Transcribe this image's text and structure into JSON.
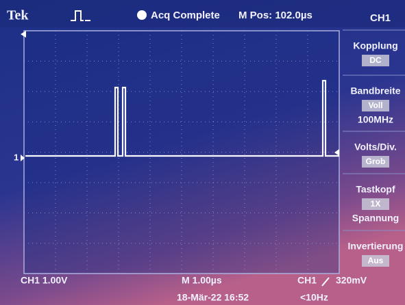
{
  "header": {
    "brand": "Tek",
    "status": "Acq Complete",
    "position": "M Pos: 102.0µs",
    "channel": "CH1"
  },
  "menu": [
    {
      "label": "Kopplung",
      "value": "DC"
    },
    {
      "label": "Bandbreite",
      "value": "Voll",
      "extra": "100MHz"
    },
    {
      "label": "Volts/Div.",
      "value": "Grob"
    },
    {
      "label": "Tastkopf",
      "value": "1X",
      "extra": "Spannung"
    },
    {
      "label": "Invertierung",
      "value": "Aus"
    }
  ],
  "channel_marker": "1",
  "footer": {
    "ch_scale": "CH1 1.00V",
    "time_scale": "M 1.00µs",
    "date": "18-Mär-22 16:52",
    "trigger_channel": "CH1",
    "trigger_level": "320mV",
    "frequency": "<10Hz"
  }
}
